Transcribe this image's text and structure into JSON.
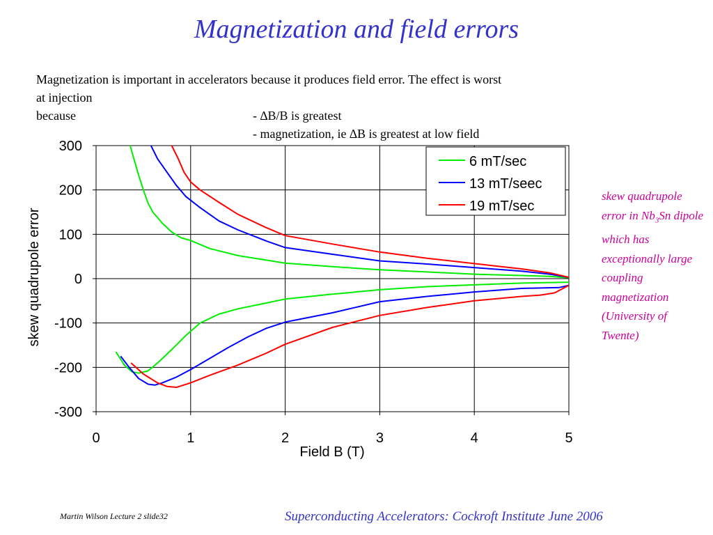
{
  "slide": {
    "title": "Magnetization and field errors",
    "intro": {
      "line1": "Magnetization is important in accelerators because it produces field error.  The effect is worst",
      "line2_a": "at injection because",
      "line2_b": "- ∆B/B is greatest",
      "line3": "- magnetization, ie ∆B is greatest at low field"
    },
    "side_note": {
      "part1": "skew quadrupole error in Nb",
      "subscript": "3",
      "part2": "Sn dipole which has exceptionally large coupling magnetization (University of Twente)"
    },
    "footer_left": "Martin Wilson Lecture 2 slide32",
    "footer_right": "Superconducting Accelerators:  Cockroft Institute June 2006"
  },
  "chart_data": {
    "type": "line",
    "title": "",
    "xlabel": "Field B (T)",
    "ylabel": "skew quadrupole error",
    "xlim": [
      0,
      5
    ],
    "ylim": [
      -300,
      300
    ],
    "xticks": [
      0,
      1,
      2,
      3,
      4,
      5
    ],
    "yticks": [
      300,
      200,
      100,
      0,
      -100,
      -200,
      -300
    ],
    "grid": true,
    "legend_position": "top-right",
    "series": [
      {
        "name": "6 mT/sec",
        "color": "#00ee00",
        "branches": [
          [
            [
              0.36,
              300
            ],
            [
              0.44,
              240
            ],
            [
              0.5,
              200
            ],
            [
              0.55,
              170
            ],
            [
              0.6,
              150
            ],
            [
              0.7,
              125
            ],
            [
              0.8,
              105
            ],
            [
              0.9,
              92
            ],
            [
              1.0,
              86
            ],
            [
              1.2,
              68
            ],
            [
              1.5,
              52
            ],
            [
              2.0,
              35
            ],
            [
              2.5,
              27
            ],
            [
              3.0,
              20
            ],
            [
              3.5,
              15
            ],
            [
              4.0,
              10
            ],
            [
              4.5,
              7
            ],
            [
              4.8,
              5
            ],
            [
              5.0,
              2
            ]
          ],
          [
            [
              0.21,
              -165
            ],
            [
              0.3,
              -195
            ],
            [
              0.38,
              -210
            ],
            [
              0.45,
              -213
            ],
            [
              0.55,
              -208
            ],
            [
              0.65,
              -190
            ],
            [
              0.8,
              -160
            ],
            [
              0.95,
              -128
            ],
            [
              1.1,
              -100
            ],
            [
              1.3,
              -80
            ],
            [
              1.5,
              -68
            ],
            [
              1.8,
              -55
            ],
            [
              2.0,
              -46
            ],
            [
              2.5,
              -35
            ],
            [
              3.0,
              -25
            ],
            [
              3.5,
              -18
            ],
            [
              4.0,
              -14
            ],
            [
              4.5,
              -10
            ],
            [
              5.0,
              -8
            ]
          ]
        ]
      },
      {
        "name": "13 mT/seec",
        "color": "#0000ff",
        "branches": [
          [
            [
              0.58,
              300
            ],
            [
              0.65,
              270
            ],
            [
              0.75,
              240
            ],
            [
              0.85,
              210
            ],
            [
              0.95,
              185
            ],
            [
              1.1,
              160
            ],
            [
              1.3,
              130
            ],
            [
              1.5,
              110
            ],
            [
              1.8,
              85
            ],
            [
              2.0,
              70
            ],
            [
              2.5,
              55
            ],
            [
              3.0,
              40
            ],
            [
              3.5,
              33
            ],
            [
              4.0,
              25
            ],
            [
              4.5,
              17
            ],
            [
              4.8,
              10
            ],
            [
              5.0,
              3
            ]
          ],
          [
            [
              0.26,
              -175
            ],
            [
              0.35,
              -200
            ],
            [
              0.45,
              -225
            ],
            [
              0.55,
              -238
            ],
            [
              0.62,
              -240
            ],
            [
              0.7,
              -235
            ],
            [
              0.85,
              -222
            ],
            [
              1.0,
              -205
            ],
            [
              1.2,
              -180
            ],
            [
              1.4,
              -155
            ],
            [
              1.6,
              -132
            ],
            [
              1.8,
              -112
            ],
            [
              2.0,
              -98
            ],
            [
              2.5,
              -77
            ],
            [
              3.0,
              -52
            ],
            [
              3.5,
              -40
            ],
            [
              4.0,
              -30
            ],
            [
              4.5,
              -22
            ],
            [
              4.9,
              -20
            ],
            [
              5.0,
              -15
            ]
          ]
        ]
      },
      {
        "name": "19 mT/sec",
        "color": "#ff0000",
        "branches": [
          [
            [
              0.8,
              300
            ],
            [
              0.87,
              270
            ],
            [
              0.93,
              240
            ],
            [
              1.0,
              218
            ],
            [
              1.1,
              200
            ],
            [
              1.3,
              172
            ],
            [
              1.5,
              145
            ],
            [
              1.8,
              115
            ],
            [
              2.0,
              97
            ],
            [
              2.5,
              78
            ],
            [
              3.0,
              60
            ],
            [
              3.5,
              46
            ],
            [
              4.0,
              34
            ],
            [
              4.5,
              22
            ],
            [
              4.8,
              13
            ],
            [
              5.0,
              3
            ]
          ],
          [
            [
              0.37,
              -190
            ],
            [
              0.5,
              -215
            ],
            [
              0.65,
              -235
            ],
            [
              0.75,
              -243
            ],
            [
              0.85,
              -245
            ],
            [
              1.0,
              -235
            ],
            [
              1.2,
              -218
            ],
            [
              1.5,
              -195
            ],
            [
              1.8,
              -168
            ],
            [
              2.0,
              -148
            ],
            [
              2.5,
              -110
            ],
            [
              3.0,
              -83
            ],
            [
              3.5,
              -65
            ],
            [
              4.0,
              -50
            ],
            [
              4.5,
              -40
            ],
            [
              4.7,
              -37
            ],
            [
              4.85,
              -32
            ],
            [
              5.0,
              -15
            ]
          ]
        ]
      }
    ]
  }
}
